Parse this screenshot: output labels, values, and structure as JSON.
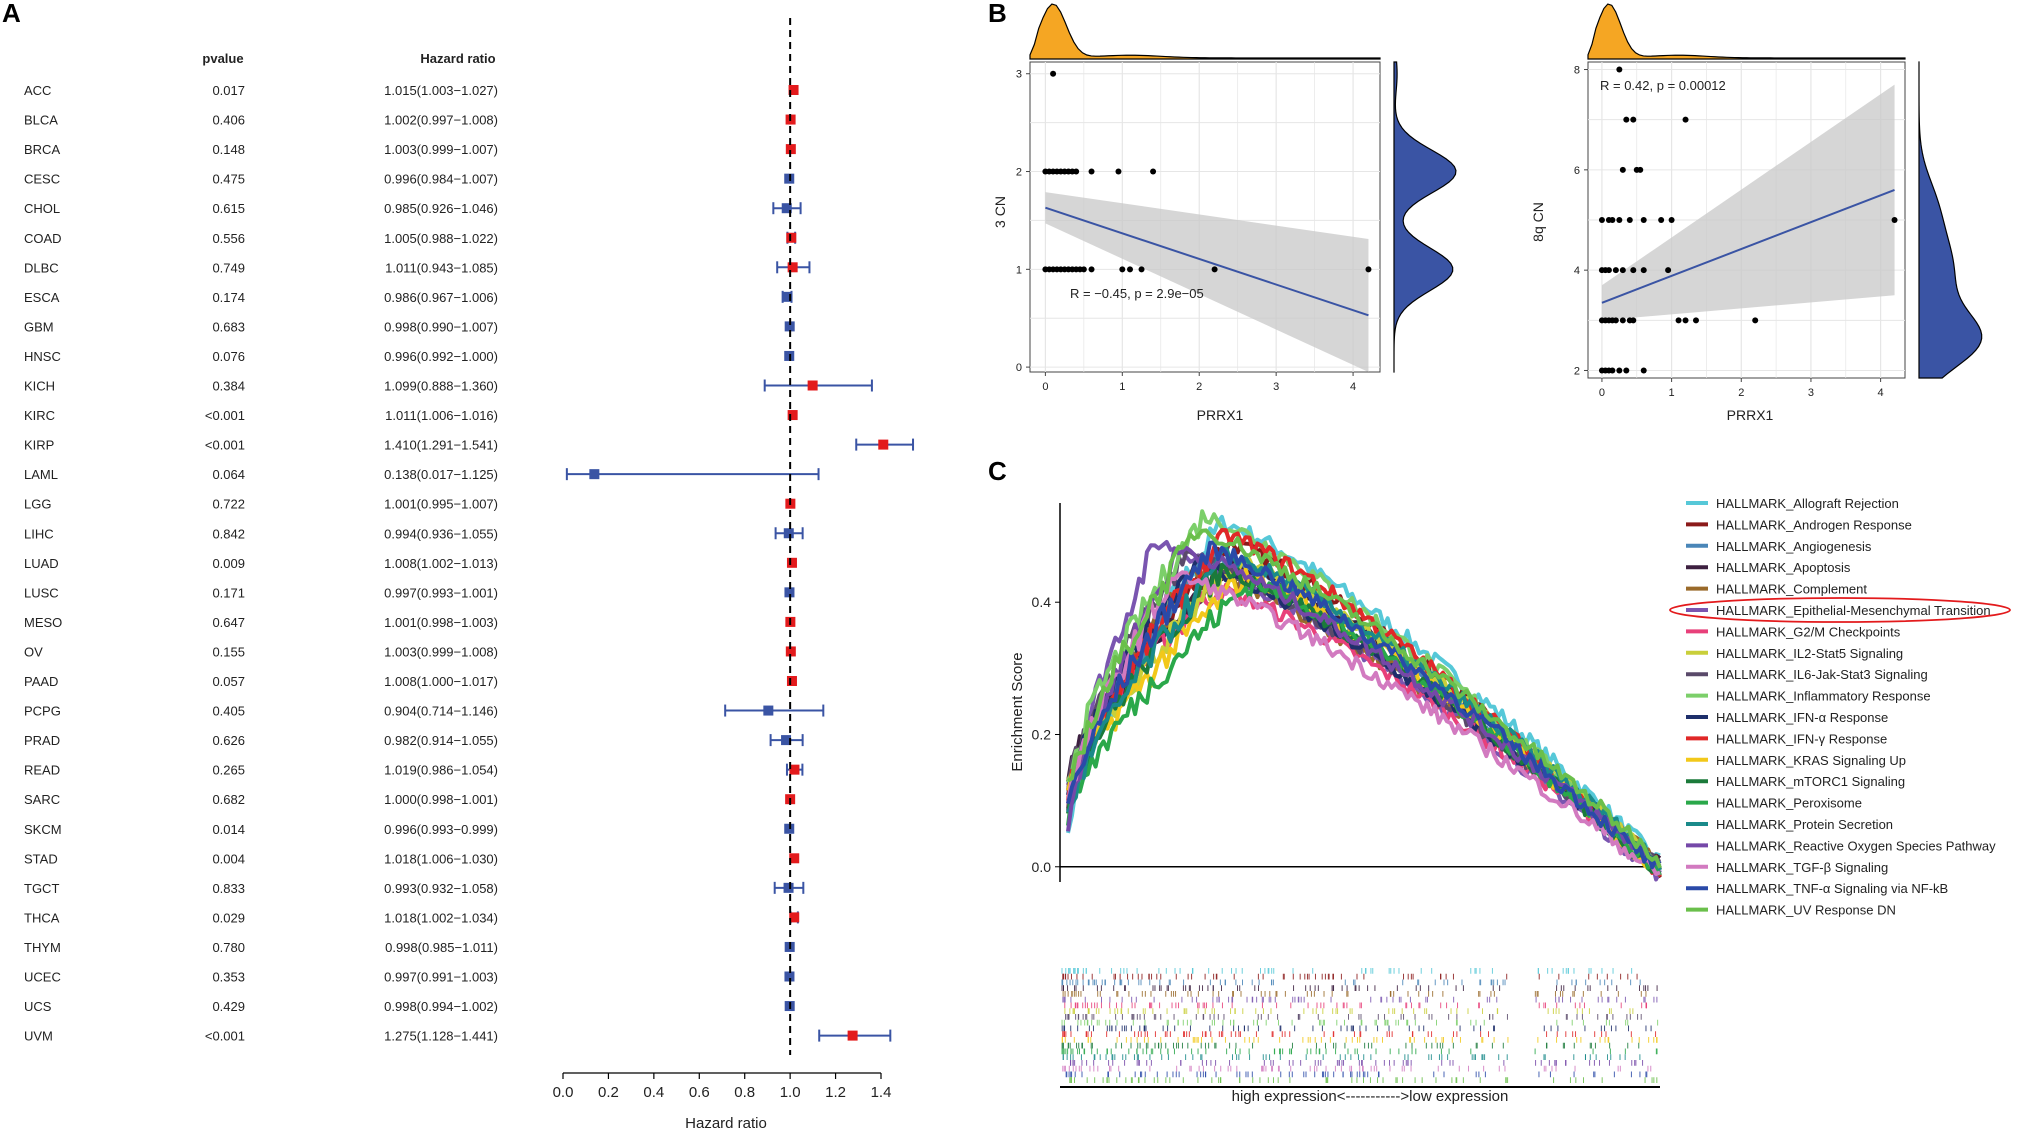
{
  "colors": {
    "red": "#e31a1c",
    "blue": "#3a54a4",
    "orange": "#f5a623",
    "gray_band": "#c8c8c8"
  },
  "panels": {
    "a": "A",
    "b": "B",
    "c": "C"
  },
  "chart_data": [
    {
      "type": "forest",
      "panel": "A",
      "col_headers": {
        "pvalue": "pvalue",
        "hr": "Hazard ratio"
      },
      "xlabel": "Hazard ratio",
      "xlim": [
        0,
        1.4
      ],
      "xticks": [
        "0.0",
        "0.2",
        "0.4",
        "0.6",
        "0.8",
        "1.0",
        "1.2",
        "1.4"
      ],
      "reference": 1.0,
      "rows": [
        {
          "cancer": "ACC",
          "pvalue": "0.017",
          "hr_text": "1.015(1.003−1.027)",
          "hr": 1.015,
          "lo": 1.003,
          "hi": 1.027
        },
        {
          "cancer": "BLCA",
          "pvalue": "0.406",
          "hr_text": "1.002(0.997−1.008)",
          "hr": 1.002,
          "lo": 0.997,
          "hi": 1.008
        },
        {
          "cancer": "BRCA",
          "pvalue": "0.148",
          "hr_text": "1.003(0.999−1.007)",
          "hr": 1.003,
          "lo": 0.999,
          "hi": 1.007
        },
        {
          "cancer": "CESC",
          "pvalue": "0.475",
          "hr_text": "0.996(0.984−1.007)",
          "hr": 0.996,
          "lo": 0.984,
          "hi": 1.007
        },
        {
          "cancer": "CHOL",
          "pvalue": "0.615",
          "hr_text": "0.985(0.926−1.046)",
          "hr": 0.985,
          "lo": 0.926,
          "hi": 1.046
        },
        {
          "cancer": "COAD",
          "pvalue": "0.556",
          "hr_text": "1.005(0.988−1.022)",
          "hr": 1.005,
          "lo": 0.988,
          "hi": 1.022
        },
        {
          "cancer": "DLBC",
          "pvalue": "0.749",
          "hr_text": "1.011(0.943−1.085)",
          "hr": 1.011,
          "lo": 0.943,
          "hi": 1.085
        },
        {
          "cancer": "ESCA",
          "pvalue": "0.174",
          "hr_text": "0.986(0.967−1.006)",
          "hr": 0.986,
          "lo": 0.967,
          "hi": 1.006
        },
        {
          "cancer": "GBM",
          "pvalue": "0.683",
          "hr_text": "0.998(0.990−1.007)",
          "hr": 0.998,
          "lo": 0.99,
          "hi": 1.007
        },
        {
          "cancer": "HNSC",
          "pvalue": "0.076",
          "hr_text": "0.996(0.992−1.000)",
          "hr": 0.996,
          "lo": 0.992,
          "hi": 1.0
        },
        {
          "cancer": "KICH",
          "pvalue": "0.384",
          "hr_text": "1.099(0.888−1.360)",
          "hr": 1.099,
          "lo": 0.888,
          "hi": 1.36
        },
        {
          "cancer": "KIRC",
          "pvalue": "<0.001",
          "hr_text": "1.011(1.006−1.016)",
          "hr": 1.011,
          "lo": 1.006,
          "hi": 1.016
        },
        {
          "cancer": "KIRP",
          "pvalue": "<0.001",
          "hr_text": "1.410(1.291−1.541)",
          "hr": 1.41,
          "lo": 1.291,
          "hi": 1.541
        },
        {
          "cancer": "LAML",
          "pvalue": "0.064",
          "hr_text": "0.138(0.017−1.125)",
          "hr": 0.138,
          "lo": 0.017,
          "hi": 1.125
        },
        {
          "cancer": "LGG",
          "pvalue": "0.722",
          "hr_text": "1.001(0.995−1.007)",
          "hr": 1.001,
          "lo": 0.995,
          "hi": 1.007
        },
        {
          "cancer": "LIHC",
          "pvalue": "0.842",
          "hr_text": "0.994(0.936−1.055)",
          "hr": 0.994,
          "lo": 0.936,
          "hi": 1.055
        },
        {
          "cancer": "LUAD",
          "pvalue": "0.009",
          "hr_text": "1.008(1.002−1.013)",
          "hr": 1.008,
          "lo": 1.002,
          "hi": 1.013
        },
        {
          "cancer": "LUSC",
          "pvalue": "0.171",
          "hr_text": "0.997(0.993−1.001)",
          "hr": 0.997,
          "lo": 0.993,
          "hi": 1.001
        },
        {
          "cancer": "MESO",
          "pvalue": "0.647",
          "hr_text": "1.001(0.998−1.003)",
          "hr": 1.001,
          "lo": 0.998,
          "hi": 1.003
        },
        {
          "cancer": "OV",
          "pvalue": "0.155",
          "hr_text": "1.003(0.999−1.008)",
          "hr": 1.003,
          "lo": 0.999,
          "hi": 1.008
        },
        {
          "cancer": "PAAD",
          "pvalue": "0.057",
          "hr_text": "1.008(1.000−1.017)",
          "hr": 1.008,
          "lo": 1.0,
          "hi": 1.017
        },
        {
          "cancer": "PCPG",
          "pvalue": "0.405",
          "hr_text": "0.904(0.714−1.146)",
          "hr": 0.904,
          "lo": 0.714,
          "hi": 1.146
        },
        {
          "cancer": "PRAD",
          "pvalue": "0.626",
          "hr_text": "0.982(0.914−1.055)",
          "hr": 0.982,
          "lo": 0.914,
          "hi": 1.055
        },
        {
          "cancer": "READ",
          "pvalue": "0.265",
          "hr_text": "1.019(0.986−1.054)",
          "hr": 1.019,
          "lo": 0.986,
          "hi": 1.054
        },
        {
          "cancer": "SARC",
          "pvalue": "0.682",
          "hr_text": "1.000(0.998−1.001)",
          "hr": 1.0,
          "lo": 0.998,
          "hi": 1.001
        },
        {
          "cancer": "SKCM",
          "pvalue": "0.014",
          "hr_text": "0.996(0.993−0.999)",
          "hr": 0.996,
          "lo": 0.993,
          "hi": 0.999
        },
        {
          "cancer": "STAD",
          "pvalue": "0.004",
          "hr_text": "1.018(1.006−1.030)",
          "hr": 1.018,
          "lo": 1.006,
          "hi": 1.03
        },
        {
          "cancer": "TGCT",
          "pvalue": "0.833",
          "hr_text": "0.993(0.932−1.058)",
          "hr": 0.993,
          "lo": 0.932,
          "hi": 1.058
        },
        {
          "cancer": "THCA",
          "pvalue": "0.029",
          "hr_text": "1.018(1.002−1.034)",
          "hr": 1.018,
          "lo": 1.002,
          "hi": 1.034
        },
        {
          "cancer": "THYM",
          "pvalue": "0.780",
          "hr_text": "0.998(0.985−1.011)",
          "hr": 0.998,
          "lo": 0.985,
          "hi": 1.011
        },
        {
          "cancer": "UCEC",
          "pvalue": "0.353",
          "hr_text": "0.997(0.991−1.003)",
          "hr": 0.997,
          "lo": 0.991,
          "hi": 1.003
        },
        {
          "cancer": "UCS",
          "pvalue": "0.429",
          "hr_text": "0.998(0.994−1.002)",
          "hr": 0.998,
          "lo": 0.994,
          "hi": 1.002
        },
        {
          "cancer": "UVM",
          "pvalue": "<0.001",
          "hr_text": "1.275(1.128−1.441)",
          "hr": 1.275,
          "lo": 1.128,
          "hi": 1.441
        }
      ]
    },
    {
      "type": "scatter",
      "panel": "B-left",
      "annotation": "R = −0.45, p = 2.9e−05",
      "xlabel": "PRRX1",
      "ylabel": "3 CN",
      "xlim": [
        -0.2,
        4.35
      ],
      "ylim": [
        -0.05,
        3.12
      ],
      "xticks": [
        0,
        1,
        2,
        3,
        4
      ],
      "yticks": [
        0,
        1,
        2,
        3
      ],
      "fit": {
        "x0": 0,
        "y0": 1.63,
        "x1": 4.2,
        "y1": 0.53,
        "lo0": 1.47,
        "hi0": 1.79,
        "lo1": -0.05,
        "hi1": 1.31
      },
      "points": [
        [
          0.1,
          3
        ],
        [
          0,
          2
        ],
        [
          0.05,
          2
        ],
        [
          0.1,
          2
        ],
        [
          0.15,
          2
        ],
        [
          0.2,
          2
        ],
        [
          0.25,
          2
        ],
        [
          0.3,
          2
        ],
        [
          0.35,
          2
        ],
        [
          0.4,
          2
        ],
        [
          0.6,
          2
        ],
        [
          0.95,
          2
        ],
        [
          1.4,
          2
        ],
        [
          0,
          1
        ],
        [
          0.05,
          1
        ],
        [
          0.1,
          1
        ],
        [
          0.15,
          1
        ],
        [
          0.2,
          1
        ],
        [
          0.25,
          1
        ],
        [
          0.3,
          1
        ],
        [
          0.35,
          1
        ],
        [
          0.4,
          1
        ],
        [
          0.45,
          1
        ],
        [
          0.5,
          1
        ],
        [
          0.6,
          1
        ],
        [
          1.0,
          1
        ],
        [
          1.1,
          1
        ],
        [
          1.25,
          1
        ],
        [
          2.2,
          1
        ],
        [
          4.2,
          1
        ]
      ]
    },
    {
      "type": "scatter",
      "panel": "B-right",
      "annotation": "R = 0.42, p = 0.00012",
      "xlabel": "PRRX1",
      "ylabel": "8q CN",
      "xlim": [
        -0.2,
        4.35
      ],
      "ylim": [
        1.85,
        8.15
      ],
      "xticks": [
        0,
        1,
        2,
        3,
        4
      ],
      "yticks": [
        2,
        4,
        6,
        8
      ],
      "fit": {
        "x0": 0,
        "y0": 3.35,
        "x1": 4.2,
        "y1": 5.6,
        "lo0": 3.0,
        "hi0": 3.7,
        "lo1": 3.5,
        "hi1": 7.7
      },
      "points": [
        [
          0.25,
          8
        ],
        [
          0.35,
          7
        ],
        [
          0.45,
          7
        ],
        [
          1.2,
          7
        ],
        [
          0.3,
          6
        ],
        [
          0.5,
          6
        ],
        [
          0.55,
          6
        ],
        [
          0,
          5
        ],
        [
          0.1,
          5
        ],
        [
          0.15,
          5
        ],
        [
          0.25,
          5
        ],
        [
          0.4,
          5
        ],
        [
          0.6,
          5
        ],
        [
          0.85,
          5
        ],
        [
          1.0,
          5
        ],
        [
          4.2,
          5
        ],
        [
          0,
          4
        ],
        [
          0.05,
          4
        ],
        [
          0.1,
          4
        ],
        [
          0.2,
          4
        ],
        [
          0.3,
          4
        ],
        [
          0.45,
          4
        ],
        [
          0.6,
          4
        ],
        [
          0.95,
          4
        ],
        [
          0,
          3
        ],
        [
          0.05,
          3
        ],
        [
          0.1,
          3
        ],
        [
          0.15,
          3
        ],
        [
          0.2,
          3
        ],
        [
          0.3,
          3
        ],
        [
          0.4,
          3
        ],
        [
          0.45,
          3
        ],
        [
          1.1,
          3
        ],
        [
          1.2,
          3
        ],
        [
          1.35,
          3
        ],
        [
          2.2,
          3
        ],
        [
          0,
          2
        ],
        [
          0.05,
          2
        ],
        [
          0.1,
          2
        ],
        [
          0.15,
          2
        ],
        [
          0.25,
          2
        ],
        [
          0.35,
          2
        ],
        [
          0.6,
          2
        ]
      ]
    },
    {
      "type": "line",
      "panel": "C",
      "ylabel": "Enrichment Score",
      "yticks": [
        "0.0",
        "0.2",
        "0.4"
      ],
      "ylim": [
        -0.02,
        0.55
      ],
      "bottom_label": "high expression<----------->low expression",
      "series": [
        {
          "name": "HALLMARK_Allograft Rejection",
          "color": "#56c8d8",
          "peak_pos": 0.26,
          "peak": 0.52,
          "highlight": false
        },
        {
          "name": "HALLMARK_Androgen Response",
          "color": "#8b1a1a",
          "peak_pos": 0.27,
          "peak": 0.49,
          "highlight": false
        },
        {
          "name": "HALLMARK_Angiogenesis",
          "color": "#4a86b8",
          "peak_pos": 0.24,
          "peak": 0.47,
          "highlight": false
        },
        {
          "name": "HALLMARK_Apoptosis",
          "color": "#3d2040",
          "peak_pos": 0.28,
          "peak": 0.46,
          "highlight": false
        },
        {
          "name": "HALLMARK_Complement",
          "color": "#9a6a2a",
          "peak_pos": 0.22,
          "peak": 0.45,
          "highlight": false
        },
        {
          "name": "HALLMARK_Epithelial-Mesenchymal Transition",
          "color": "#7a55b0",
          "peak_pos": 0.15,
          "peak": 0.49,
          "highlight": true
        },
        {
          "name": "HALLMARK_G2/M Checkpoints",
          "color": "#e8407a",
          "peak_pos": 0.25,
          "peak": 0.42,
          "highlight": false
        },
        {
          "name": "HALLMARK_IL2-Stat5 Signaling",
          "color": "#c9cf3a",
          "peak_pos": 0.29,
          "peak": 0.46,
          "highlight": false
        },
        {
          "name": "HALLMARK_IL6-Jak-Stat3 Signaling",
          "color": "#5a4a6a",
          "peak_pos": 0.2,
          "peak": 0.47,
          "highlight": false
        },
        {
          "name": "HALLMARK_Inflammatory Response",
          "color": "#7ccf6a",
          "peak_pos": 0.23,
          "peak": 0.53,
          "highlight": false
        },
        {
          "name": "HALLMARK_IFN-α Response",
          "color": "#1e2f6b",
          "peak_pos": 0.21,
          "peak": 0.46,
          "highlight": false
        },
        {
          "name": "HALLMARK_IFN-γ Response",
          "color": "#e02828",
          "peak_pos": 0.27,
          "peak": 0.5,
          "highlight": false
        },
        {
          "name": "HALLMARK_KRAS Signaling Up",
          "color": "#f2c81a",
          "peak_pos": 0.3,
          "peak": 0.44,
          "highlight": false
        },
        {
          "name": "HALLMARK_mTORC1 Signaling",
          "color": "#1b7a3a",
          "peak_pos": 0.26,
          "peak": 0.45,
          "highlight": false
        },
        {
          "name": "HALLMARK_Peroxisome",
          "color": "#2aa84a",
          "peak_pos": 0.31,
          "peak": 0.43,
          "highlight": false
        },
        {
          "name": "HALLMARK_Protein Secretion",
          "color": "#1a8a8a",
          "peak_pos": 0.27,
          "peak": 0.47,
          "highlight": false
        },
        {
          "name": "HALLMARK_Reactive Oxygen Species Pathway",
          "color": "#7548a8",
          "peak_pos": 0.19,
          "peak": 0.48,
          "highlight": false
        },
        {
          "name": "HALLMARK_TGF-β Signaling",
          "color": "#d27ac0",
          "peak_pos": 0.18,
          "peak": 0.44,
          "highlight": false
        },
        {
          "name": "HALLMARK_TNF-α Signaling via NF-kB",
          "color": "#2a4aa8",
          "peak_pos": 0.24,
          "peak": 0.48,
          "highlight": false
        },
        {
          "name": "HALLMARK_UV Response DN",
          "color": "#6abf4b",
          "peak_pos": 0.22,
          "peak": 0.51,
          "highlight": false
        }
      ]
    }
  ]
}
